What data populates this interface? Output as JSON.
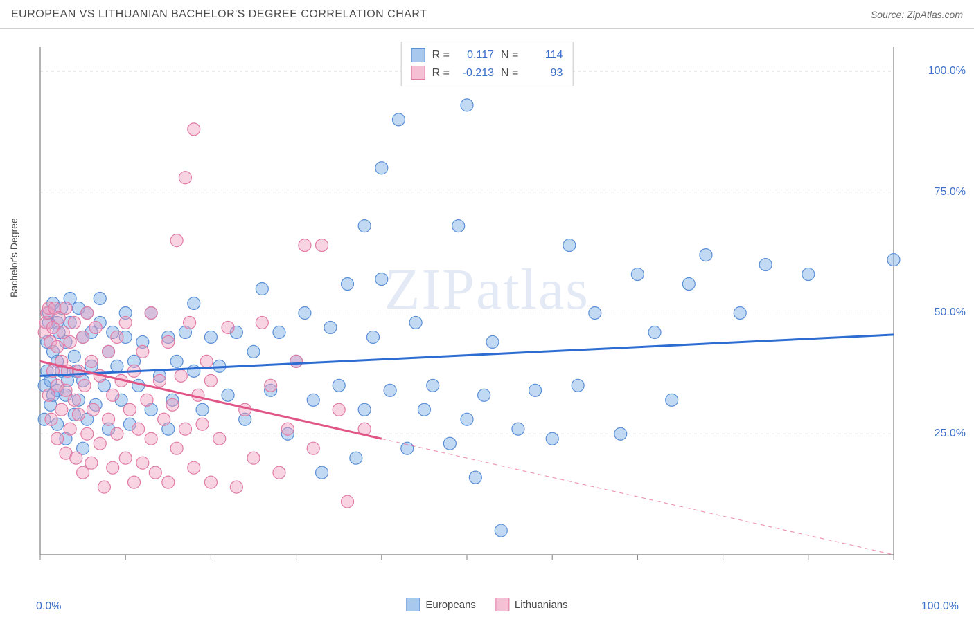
{
  "header": {
    "title": "EUROPEAN VS LITHUANIAN BACHELOR'S DEGREE CORRELATION CHART",
    "source_prefix": "Source: ",
    "source_name": "ZipAtlas.com"
  },
  "chart": {
    "type": "scatter",
    "ylabel": "Bachelor's Degree",
    "xlim": [
      0,
      100
    ],
    "ylim": [
      0,
      105
    ],
    "xtick_labels": {
      "min": "0.0%",
      "max": "100.0%"
    },
    "ytick_labels": [
      "25.0%",
      "50.0%",
      "75.0%",
      "100.0%"
    ],
    "ytick_values": [
      25,
      50,
      75,
      100
    ],
    "xtick_positions": [
      0,
      10,
      20,
      30,
      40,
      50,
      60,
      70,
      80,
      90,
      100
    ],
    "grid_color": "#d8d8d8",
    "axis_color": "#808080",
    "background_color": "#ffffff",
    "watermark": "ZIPatlas",
    "series": [
      {
        "name": "Europeans",
        "color_fill": "rgba(120,170,230,0.45)",
        "color_stroke": "#5a8fd6",
        "swatch_fill": "#a8c8ee",
        "swatch_border": "#5a8fd6",
        "marker_radius": 9,
        "regression": {
          "y_at_x0": 37,
          "y_at_x100": 45.5,
          "color": "#2d6cd1",
          "width": 3,
          "dash": "none",
          "extend_dash": false
        },
        "stats": {
          "R_label": "R =",
          "R": "0.117",
          "N_label": "N =",
          "N": "114"
        },
        "points": [
          [
            0.5,
            28
          ],
          [
            0.5,
            35
          ],
          [
            0.8,
            38
          ],
          [
            0.8,
            44
          ],
          [
            1,
            50
          ],
          [
            1,
            48
          ],
          [
            1.2,
            31
          ],
          [
            1.2,
            36
          ],
          [
            1.5,
            52
          ],
          [
            1.5,
            42
          ],
          [
            1.5,
            33
          ],
          [
            2,
            48
          ],
          [
            2,
            40
          ],
          [
            2,
            34
          ],
          [
            2,
            27
          ],
          [
            2.2,
            46
          ],
          [
            2.5,
            51
          ],
          [
            2.5,
            38
          ],
          [
            3,
            44
          ],
          [
            3,
            33
          ],
          [
            3,
            24
          ],
          [
            3.2,
            36
          ],
          [
            3.5,
            48
          ],
          [
            3.5,
            53
          ],
          [
            4,
            29
          ],
          [
            4,
            41
          ],
          [
            4.2,
            38
          ],
          [
            4.5,
            51
          ],
          [
            4.5,
            32
          ],
          [
            5,
            22
          ],
          [
            5,
            36
          ],
          [
            5,
            45
          ],
          [
            5.5,
            50
          ],
          [
            5.5,
            28
          ],
          [
            6,
            39
          ],
          [
            6,
            46
          ],
          [
            6.5,
            31
          ],
          [
            7,
            48
          ],
          [
            7,
            53
          ],
          [
            7.5,
            35
          ],
          [
            8,
            42
          ],
          [
            8,
            26
          ],
          [
            8.5,
            46
          ],
          [
            9,
            39
          ],
          [
            9.5,
            32
          ],
          [
            10,
            45
          ],
          [
            10,
            50
          ],
          [
            10.5,
            27
          ],
          [
            11,
            40
          ],
          [
            11.5,
            35
          ],
          [
            12,
            44
          ],
          [
            13,
            30
          ],
          [
            13,
            50
          ],
          [
            14,
            37
          ],
          [
            15,
            45
          ],
          [
            15,
            26
          ],
          [
            15.5,
            32
          ],
          [
            16,
            40
          ],
          [
            17,
            46
          ],
          [
            18,
            38
          ],
          [
            18,
            52
          ],
          [
            19,
            30
          ],
          [
            20,
            45
          ],
          [
            21,
            39
          ],
          [
            22,
            33
          ],
          [
            23,
            46
          ],
          [
            24,
            28
          ],
          [
            25,
            42
          ],
          [
            26,
            55
          ],
          [
            27,
            34
          ],
          [
            28,
            46
          ],
          [
            29,
            25
          ],
          [
            30,
            40
          ],
          [
            31,
            50
          ],
          [
            32,
            32
          ],
          [
            33,
            17
          ],
          [
            34,
            47
          ],
          [
            35,
            35
          ],
          [
            36,
            56
          ],
          [
            37,
            20
          ],
          [
            38,
            68
          ],
          [
            38,
            30
          ],
          [
            39,
            45
          ],
          [
            40,
            57
          ],
          [
            40,
            80
          ],
          [
            41,
            34
          ],
          [
            42,
            90
          ],
          [
            43,
            22
          ],
          [
            44,
            48
          ],
          [
            45,
            30
          ],
          [
            46,
            35
          ],
          [
            48,
            23
          ],
          [
            49,
            68
          ],
          [
            50,
            93
          ],
          [
            50,
            28
          ],
          [
            51,
            16
          ],
          [
            52,
            33
          ],
          [
            53,
            44
          ],
          [
            54,
            5
          ],
          [
            56,
            26
          ],
          [
            58,
            34
          ],
          [
            60,
            24
          ],
          [
            62,
            64
          ],
          [
            63,
            35
          ],
          [
            65,
            50
          ],
          [
            68,
            25
          ],
          [
            70,
            58
          ],
          [
            72,
            46
          ],
          [
            74,
            32
          ],
          [
            76,
            56
          ],
          [
            78,
            62
          ],
          [
            82,
            50
          ],
          [
            85,
            60
          ],
          [
            90,
            58
          ],
          [
            100,
            61
          ]
        ]
      },
      {
        "name": "Lithuanians",
        "color_fill": "rgba(240,160,190,0.45)",
        "color_stroke": "#e07ba5",
        "swatch_fill": "#f5c0d4",
        "swatch_border": "#e07ba5",
        "marker_radius": 9,
        "regression": {
          "y_at_x0": 40,
          "y_at_x100": 0,
          "solid_until_x": 40,
          "color": "#e05585",
          "width": 3,
          "dash": "6,5",
          "extend_dash": true
        },
        "stats": {
          "R_label": "R =",
          "R": "-0.213",
          "N_label": "N =",
          "N": "93"
        },
        "points": [
          [
            0.5,
            46
          ],
          [
            0.7,
            48
          ],
          [
            0.8,
            50
          ],
          [
            1,
            51
          ],
          [
            1,
            33
          ],
          [
            1.2,
            44
          ],
          [
            1.3,
            28
          ],
          [
            1.5,
            47
          ],
          [
            1.5,
            38
          ],
          [
            1.7,
            51
          ],
          [
            2,
            43
          ],
          [
            2,
            35
          ],
          [
            2,
            24
          ],
          [
            2.2,
            49
          ],
          [
            2.5,
            30
          ],
          [
            2.5,
            40
          ],
          [
            2.7,
            46
          ],
          [
            3,
            21
          ],
          [
            3,
            34
          ],
          [
            3,
            51
          ],
          [
            3.2,
            38
          ],
          [
            3.5,
            26
          ],
          [
            3.5,
            44
          ],
          [
            4,
            32
          ],
          [
            4,
            48
          ],
          [
            4.2,
            20
          ],
          [
            4.5,
            38
          ],
          [
            4.5,
            29
          ],
          [
            5,
            45
          ],
          [
            5,
            17
          ],
          [
            5.2,
            35
          ],
          [
            5.5,
            25
          ],
          [
            5.5,
            50
          ],
          [
            6,
            40
          ],
          [
            6,
            19
          ],
          [
            6.2,
            30
          ],
          [
            6.5,
            47
          ],
          [
            7,
            23
          ],
          [
            7,
            37
          ],
          [
            7.5,
            14
          ],
          [
            8,
            42
          ],
          [
            8,
            28
          ],
          [
            8.5,
            33
          ],
          [
            8.5,
            18
          ],
          [
            9,
            45
          ],
          [
            9,
            25
          ],
          [
            9.5,
            36
          ],
          [
            10,
            20
          ],
          [
            10,
            48
          ],
          [
            10.5,
            30
          ],
          [
            11,
            15
          ],
          [
            11,
            38
          ],
          [
            11.5,
            26
          ],
          [
            12,
            42
          ],
          [
            12,
            19
          ],
          [
            12.5,
            32
          ],
          [
            13,
            24
          ],
          [
            13,
            50
          ],
          [
            13.5,
            17
          ],
          [
            14,
            36
          ],
          [
            14.5,
            28
          ],
          [
            15,
            44
          ],
          [
            15,
            15
          ],
          [
            15.5,
            31
          ],
          [
            16,
            22
          ],
          [
            16,
            65
          ],
          [
            16.5,
            37
          ],
          [
            17,
            26
          ],
          [
            17,
            78
          ],
          [
            17.5,
            48
          ],
          [
            18,
            88
          ],
          [
            18,
            18
          ],
          [
            18.5,
            33
          ],
          [
            19,
            27
          ],
          [
            19.5,
            40
          ],
          [
            20,
            15
          ],
          [
            20,
            36
          ],
          [
            21,
            24
          ],
          [
            22,
            47
          ],
          [
            23,
            14
          ],
          [
            24,
            30
          ],
          [
            25,
            20
          ],
          [
            26,
            48
          ],
          [
            27,
            35
          ],
          [
            28,
            17
          ],
          [
            29,
            26
          ],
          [
            30,
            40
          ],
          [
            31,
            64
          ],
          [
            32,
            22
          ],
          [
            33,
            64
          ],
          [
            35,
            30
          ],
          [
            36,
            11
          ],
          [
            38,
            26
          ]
        ]
      }
    ],
    "bottom_legend": [
      "Europeans",
      "Lithuanians"
    ]
  }
}
